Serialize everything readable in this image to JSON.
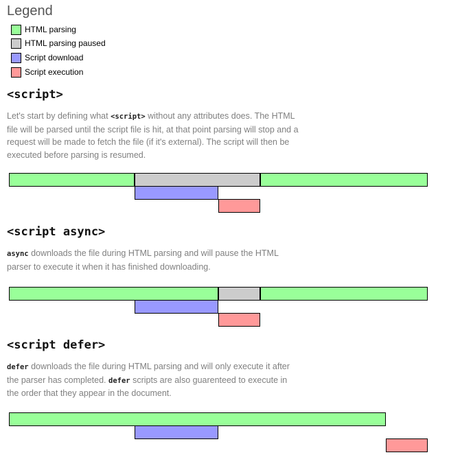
{
  "legend": {
    "title": "Legend",
    "items": [
      {
        "label": "HTML parsing",
        "color": "#99ff99"
      },
      {
        "label": "HTML parsing paused",
        "color": "#cccccc"
      },
      {
        "label": "Script download",
        "color": "#9999ff"
      },
      {
        "label": "Script execution",
        "color": "#ff9999"
      }
    ]
  },
  "sections": [
    {
      "title": "<script>",
      "desc_parts": [
        {
          "text": "Let's start by defining what ",
          "code": false
        },
        {
          "text": "<script>",
          "code": true
        },
        {
          "text": " without any attributes does. The HTML",
          "code": false
        },
        {
          "br": true
        },
        {
          "text": "file will be parsed until the script file is hit, at that point parsing will stop and a",
          "code": false
        },
        {
          "br": true
        },
        {
          "text": "request will be made to fetch the file (if it's external). The script will then be",
          "code": false
        },
        {
          "br": true
        },
        {
          "text": "executed before parsing is resumed.",
          "code": false
        }
      ]
    },
    {
      "title": "<script async>",
      "desc_parts": [
        {
          "text": "async",
          "code": true
        },
        {
          "text": " downloads the file during HTML parsing and will pause the HTML",
          "code": false
        },
        {
          "br": true
        },
        {
          "text": "parser to execute it when it has finished downloading.",
          "code": false
        }
      ]
    },
    {
      "title": "<script defer>",
      "desc_parts": [
        {
          "text": "defer",
          "code": true
        },
        {
          "text": " downloads the file during HTML parsing and will only execute it after",
          "code": false
        },
        {
          "br": true
        },
        {
          "text": "the parser has completed. ",
          "code": false
        },
        {
          "text": "defer",
          "code": true
        },
        {
          "text": " scripts are also guarenteed to execute in",
          "code": false
        },
        {
          "br": true
        },
        {
          "text": "the order that they appear in the document.",
          "code": false
        }
      ]
    }
  ],
  "timelines": [
    {
      "name": "script",
      "rows": [
        [
          {
            "kind": "HTML parsing",
            "start": 0,
            "end": 30
          },
          {
            "kind": "HTML parsing paused",
            "start": 30,
            "end": 60
          },
          {
            "kind": "HTML parsing",
            "start": 60,
            "end": 100
          }
        ],
        [
          {
            "kind": "Script download",
            "start": 30,
            "end": 50
          }
        ],
        [
          {
            "kind": "Script execution",
            "start": 50,
            "end": 60
          }
        ]
      ]
    },
    {
      "name": "script-async",
      "rows": [
        [
          {
            "kind": "HTML parsing",
            "start": 0,
            "end": 50
          },
          {
            "kind": "HTML parsing paused",
            "start": 50,
            "end": 60
          },
          {
            "kind": "HTML parsing",
            "start": 60,
            "end": 100
          }
        ],
        [
          {
            "kind": "Script download",
            "start": 30,
            "end": 50
          }
        ],
        [
          {
            "kind": "Script execution",
            "start": 50,
            "end": 60
          }
        ]
      ]
    },
    {
      "name": "script-defer",
      "rows": [
        [
          {
            "kind": "HTML parsing",
            "start": 0,
            "end": 90
          }
        ],
        [
          {
            "kind": "Script download",
            "start": 30,
            "end": 50
          }
        ],
        [
          {
            "kind": "Script execution",
            "start": 90,
            "end": 100
          }
        ]
      ]
    }
  ]
}
